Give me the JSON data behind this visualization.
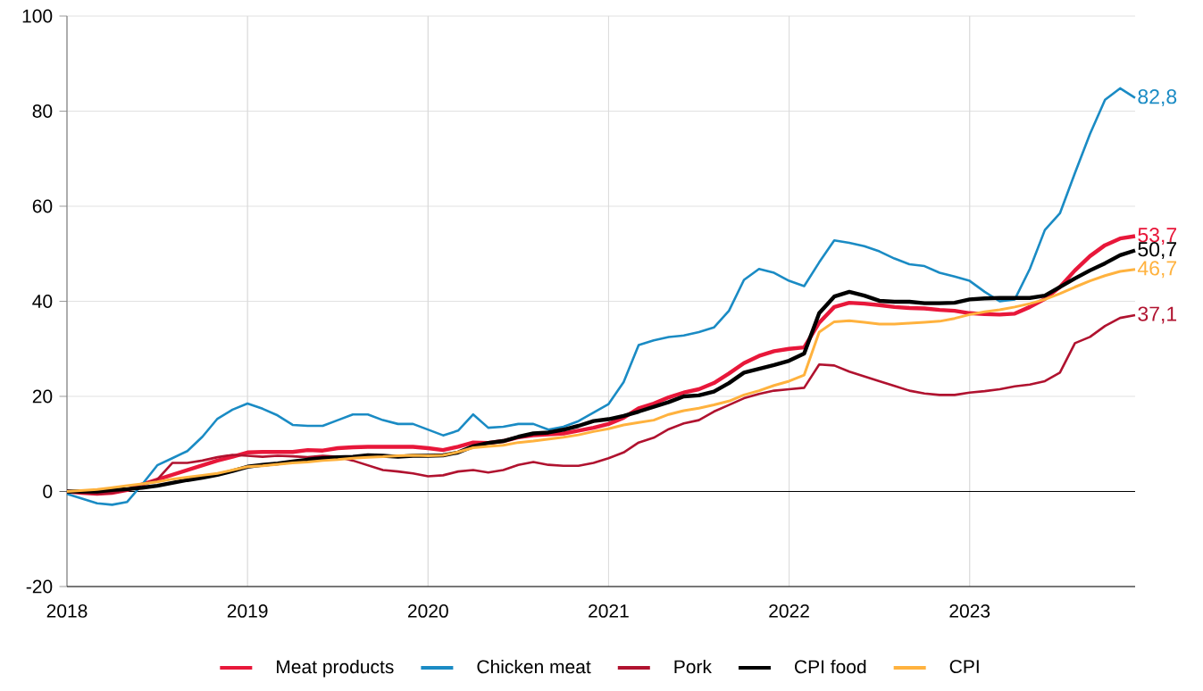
{
  "chart_data": {
    "type": "line",
    "xlim": [
      "2018-01",
      "2023-12"
    ],
    "xticks": [
      "2018",
      "2019",
      "2020",
      "2021",
      "2022",
      "2023"
    ],
    "ylim": [
      -20,
      100
    ],
    "yticks": [
      -20,
      0,
      20,
      40,
      60,
      80,
      100
    ],
    "grid": true,
    "legend": "bottom",
    "line_style": "solid",
    "marker": "none",
    "x": [
      "2018-01",
      "2018-02",
      "2018-03",
      "2018-04",
      "2018-05",
      "2018-06",
      "2018-07",
      "2018-08",
      "2018-09",
      "2018-10",
      "2018-11",
      "2018-12",
      "2019-01",
      "2019-02",
      "2019-03",
      "2019-04",
      "2019-05",
      "2019-06",
      "2019-07",
      "2019-08",
      "2019-09",
      "2019-10",
      "2019-11",
      "2019-12",
      "2020-01",
      "2020-02",
      "2020-03",
      "2020-04",
      "2020-05",
      "2020-06",
      "2020-07",
      "2020-08",
      "2020-09",
      "2020-10",
      "2020-11",
      "2020-12",
      "2021-01",
      "2021-02",
      "2021-03",
      "2021-04",
      "2021-05",
      "2021-06",
      "2021-07",
      "2021-08",
      "2021-09",
      "2021-10",
      "2021-11",
      "2021-12",
      "2022-01",
      "2022-02",
      "2022-03",
      "2022-04",
      "2022-05",
      "2022-06",
      "2022-07",
      "2022-08",
      "2022-09",
      "2022-10",
      "2022-11",
      "2022-12",
      "2023-01",
      "2023-02",
      "2023-03",
      "2023-04",
      "2023-05",
      "2023-06",
      "2023-07",
      "2023-08",
      "2023-09",
      "2023-10",
      "2023-11",
      "2023-12"
    ],
    "series": [
      {
        "name": "Meat products",
        "color": "#e8173a",
        "values": [
          0,
          -0.3,
          -0.5,
          -0.3,
          0.3,
          1.5,
          2.5,
          3.5,
          4.5,
          5.5,
          6.5,
          7.3,
          8.2,
          8.3,
          8.3,
          8.3,
          8.7,
          8.6,
          9.1,
          9.3,
          9.4,
          9.4,
          9.4,
          9.4,
          9.1,
          8.7,
          9.4,
          10.3,
          10.2,
          10.6,
          11.4,
          11.8,
          12,
          12.2,
          12.8,
          13.4,
          14.2,
          15.5,
          17.5,
          18.5,
          19.8,
          20.8,
          21.5,
          22.8,
          24.8,
          27,
          28.5,
          29.5,
          30,
          30.3,
          35.5,
          38.8,
          39.7,
          39.5,
          39.2,
          38.8,
          38.6,
          38.5,
          38.2,
          38,
          37.5,
          37.3,
          37.2,
          37.4,
          38.8,
          40.5,
          43,
          46.5,
          49.5,
          51.8,
          53.2,
          53.7
        ],
        "value_labels": [
          null,
          null,
          null,
          null,
          null,
          null,
          null,
          null,
          null,
          null,
          null,
          null,
          null,
          null,
          null,
          null,
          null,
          null,
          null,
          null,
          null,
          null,
          null,
          null,
          null,
          null,
          null,
          null,
          null,
          null,
          null,
          null,
          null,
          null,
          null,
          null,
          null,
          null,
          null,
          null,
          null,
          null,
          null,
          null,
          null,
          null,
          null,
          null,
          null,
          null,
          null,
          null,
          null,
          null,
          null,
          null,
          null,
          null,
          null,
          null,
          null,
          null,
          null,
          null,
          null,
          null,
          null,
          null,
          null,
          null,
          null,
          "53,7"
        ]
      },
      {
        "name": "Chicken meat",
        "color": "#1a8bc4",
        "values": [
          -0.5,
          -1.5,
          -2.5,
          -2.8,
          -2.2,
          1.5,
          5.5,
          7,
          8.5,
          11.5,
          15.3,
          17.2,
          18.5,
          17.4,
          16,
          14,
          13.8,
          13.8,
          15,
          16.2,
          16.2,
          15,
          14.2,
          14.2,
          13,
          11.8,
          12.8,
          16.2,
          13.4,
          13.6,
          14.2,
          14.2,
          13,
          13.6,
          14.8,
          16.6,
          18.4,
          23,
          30.8,
          31.8,
          32.5,
          32.8,
          33.5,
          34.5,
          38,
          44.5,
          46.8,
          46,
          44.3,
          43.2,
          48.2,
          52.8,
          52.3,
          51.6,
          50.5,
          49,
          47.8,
          47.4,
          46,
          45.2,
          44.3,
          42,
          40,
          40.4,
          46.8,
          55,
          58.5,
          67,
          75.2,
          82.4,
          84.8,
          82.8
        ],
        "value_labels": [
          null,
          null,
          null,
          null,
          null,
          null,
          null,
          null,
          null,
          null,
          null,
          null,
          null,
          null,
          null,
          null,
          null,
          null,
          null,
          null,
          null,
          null,
          null,
          null,
          null,
          null,
          null,
          null,
          null,
          null,
          null,
          null,
          null,
          null,
          null,
          null,
          null,
          null,
          null,
          null,
          null,
          null,
          null,
          null,
          null,
          null,
          null,
          null,
          null,
          null,
          null,
          null,
          null,
          null,
          null,
          null,
          null,
          null,
          null,
          null,
          null,
          null,
          null,
          null,
          null,
          null,
          null,
          null,
          null,
          null,
          null,
          "82,8"
        ]
      },
      {
        "name": "Pork",
        "color": "#b0122f",
        "values": [
          0,
          -0.3,
          -0.5,
          -0.3,
          0.3,
          1.5,
          2.5,
          6,
          6,
          6.5,
          7.2,
          7.7,
          7.5,
          7.3,
          7.5,
          7.4,
          7.2,
          7.5,
          7.3,
          6.5,
          5.5,
          4.5,
          4.2,
          3.8,
          3.2,
          3.4,
          4.2,
          4.5,
          4,
          4.5,
          5.6,
          6.2,
          5.6,
          5.4,
          5.4,
          6,
          7,
          8.2,
          10.3,
          11.3,
          13.1,
          14.3,
          15,
          16.8,
          18.2,
          19.6,
          20.5,
          21.2,
          21.5,
          21.8,
          26.7,
          26.5,
          25.2,
          24.2,
          23.2,
          22.2,
          21.2,
          20.6,
          20.3,
          20.3,
          20.8,
          21.1,
          21.5,
          22.1,
          22.5,
          23.2,
          25,
          31.2,
          32.5,
          34.8,
          36.5,
          37.1
        ],
        "value_labels": [
          null,
          null,
          null,
          null,
          null,
          null,
          null,
          null,
          null,
          null,
          null,
          null,
          null,
          null,
          null,
          null,
          null,
          null,
          null,
          null,
          null,
          null,
          null,
          null,
          null,
          null,
          null,
          null,
          null,
          null,
          null,
          null,
          null,
          null,
          null,
          null,
          null,
          null,
          null,
          null,
          null,
          null,
          null,
          null,
          null,
          null,
          null,
          null,
          null,
          null,
          null,
          null,
          null,
          null,
          null,
          null,
          null,
          null,
          null,
          null,
          null,
          null,
          null,
          null,
          null,
          null,
          null,
          null,
          null,
          null,
          null,
          "37,1"
        ]
      },
      {
        "name": "CPI food",
        "color": "#000000",
        "values": [
          0,
          0,
          0,
          0.3,
          0.5,
          0.8,
          1.2,
          1.8,
          2.4,
          2.9,
          3.5,
          4.3,
          5.2,
          5.6,
          5.9,
          6.3,
          6.7,
          7,
          7.2,
          7.3,
          7.6,
          7.5,
          7.3,
          7.5,
          7.5,
          7.6,
          8.2,
          9.5,
          10.2,
          10.6,
          11.5,
          12.2,
          12.4,
          13,
          13.8,
          14.8,
          15.2,
          15.9,
          16.8,
          17.8,
          18.8,
          20,
          20.2,
          21,
          22.8,
          25,
          25.8,
          26.6,
          27.5,
          29,
          37.5,
          41,
          42,
          41.2,
          40.1,
          39.9,
          39.9,
          39.6,
          39.6,
          39.7,
          40.4,
          40.6,
          40.7,
          40.7,
          40.7,
          41.2,
          43,
          44.8,
          46.5,
          48,
          49.7,
          50.7
        ],
        "value_labels": [
          null,
          null,
          null,
          null,
          null,
          null,
          null,
          null,
          null,
          null,
          null,
          null,
          null,
          null,
          null,
          null,
          null,
          null,
          null,
          null,
          null,
          null,
          null,
          null,
          null,
          null,
          null,
          null,
          null,
          null,
          null,
          null,
          null,
          null,
          null,
          null,
          null,
          null,
          null,
          null,
          null,
          null,
          null,
          null,
          null,
          null,
          null,
          null,
          null,
          null,
          null,
          null,
          null,
          null,
          null,
          null,
          null,
          null,
          null,
          null,
          null,
          null,
          null,
          null,
          null,
          null,
          null,
          null,
          null,
          null,
          null,
          "50,7"
        ]
      },
      {
        "name": "CPI",
        "color": "#ffb23e",
        "values": [
          0,
          0.2,
          0.4,
          0.8,
          1.2,
          1.6,
          2,
          2.6,
          3,
          3.4,
          3.8,
          4.5,
          5.2,
          5.4,
          5.7,
          6,
          6.2,
          6.5,
          6.7,
          7,
          7.2,
          7.3,
          7.5,
          7.6,
          7.5,
          7.6,
          8.3,
          9.2,
          9.5,
          9.7,
          10.3,
          10.6,
          11,
          11.4,
          11.9,
          12.6,
          13.2,
          14,
          14.5,
          15,
          16.2,
          17,
          17.5,
          18.2,
          19,
          20.3,
          21.2,
          22.3,
          23.2,
          24.5,
          33.5,
          35.7,
          35.9,
          35.6,
          35.2,
          35.2,
          35.4,
          35.6,
          35.8,
          36.4,
          37.2,
          37.8,
          38.2,
          38.8,
          39.5,
          40.4,
          41.6,
          43,
          44.3,
          45.4,
          46.3,
          46.7
        ],
        "value_labels": [
          null,
          null,
          null,
          null,
          null,
          null,
          null,
          null,
          null,
          null,
          null,
          null,
          null,
          null,
          null,
          null,
          null,
          null,
          null,
          null,
          null,
          null,
          null,
          null,
          null,
          null,
          null,
          null,
          null,
          null,
          null,
          null,
          null,
          null,
          null,
          null,
          null,
          null,
          null,
          null,
          null,
          null,
          null,
          null,
          null,
          null,
          null,
          null,
          null,
          null,
          null,
          null,
          null,
          null,
          null,
          null,
          null,
          null,
          null,
          null,
          null,
          null,
          null,
          null,
          null,
          null,
          null,
          null,
          null,
          null,
          null,
          "46,7"
        ]
      }
    ]
  }
}
